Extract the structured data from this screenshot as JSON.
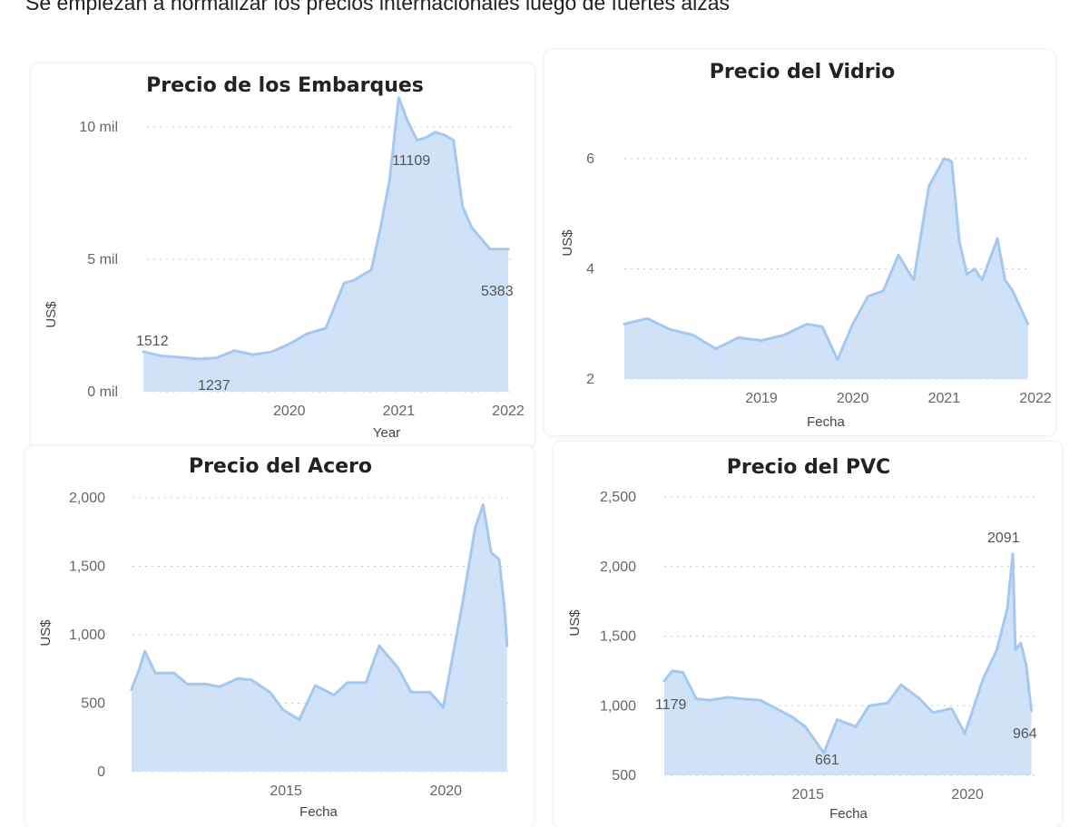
{
  "headline": "Se empiezan a normalizar los precios internacionales luego de fuertes alzas",
  "colors": {
    "line": "#a4c8ef",
    "area": "#cfe2f8",
    "card": "#ffffff"
  },
  "chart_data": [
    {
      "type": "area",
      "title": "Precio de los Embarques",
      "xlabel": "Year",
      "ylabel": "US$",
      "grid": true,
      "x_ticks": [
        "2020",
        "2021",
        "2022"
      ],
      "y_ticks": [
        "0 mil",
        "5 mil",
        "10 mil"
      ],
      "ylim": [
        0,
        10000
      ],
      "data_labels": [
        "1512",
        "1237",
        "11109",
        "5383"
      ],
      "series": [
        {
          "x": [
            "2019-03",
            "2019-05",
            "2019-07",
            "2019-09",
            "2019-11",
            "2020-01",
            "2020-03",
            "2020-05",
            "2020-07",
            "2020-09",
            "2020-11",
            "2021-01",
            "2021-02",
            "2021-04",
            "2021-05",
            "2021-06",
            "2021-07",
            "2021-08",
            "2021-09",
            "2021-10",
            "2021-11",
            "2021-12",
            "2022-01",
            "2022-02",
            "2022-03",
            "2022-04",
            "2022-05",
            "2022-06",
            "2022-07"
          ],
          "values": [
            1512,
            1350,
            1300,
            1237,
            1280,
            1550,
            1400,
            1500,
            1800,
            2200,
            2400,
            4100,
            4200,
            4600,
            6200,
            8000,
            11109,
            10200,
            9500,
            9600,
            9800,
            9700,
            9500,
            7000,
            6200,
            5800,
            5383,
            5383,
            5383
          ]
        }
      ]
    },
    {
      "type": "area",
      "title": "Precio del Vidrio",
      "xlabel": "Fecha",
      "ylabel": "US$",
      "grid": true,
      "x_ticks": [
        "2019",
        "2020",
        "2021",
        "2022"
      ],
      "y_ticks": [
        "2",
        "4",
        "6"
      ],
      "ylim": [
        2,
        6
      ],
      "series": [
        {
          "x": [
            "2018-01",
            "2018-04",
            "2018-07",
            "2018-10",
            "2019-01",
            "2019-04",
            "2019-07",
            "2019-10",
            "2020-01",
            "2020-03",
            "2020-05",
            "2020-07",
            "2020-09",
            "2020-11",
            "2021-01",
            "2021-03",
            "2021-05",
            "2021-07",
            "2021-08",
            "2021-09",
            "2021-10",
            "2021-11",
            "2021-12",
            "2022-02",
            "2022-03",
            "2022-04",
            "2022-05",
            "2022-06"
          ],
          "values": [
            3.0,
            3.1,
            2.9,
            2.8,
            2.55,
            2.75,
            2.7,
            2.8,
            3.0,
            2.95,
            2.35,
            3.0,
            3.5,
            3.6,
            4.25,
            3.8,
            5.5,
            6.0,
            5.95,
            4.5,
            3.9,
            4.0,
            3.8,
            4.55,
            3.8,
            3.6,
            3.3,
            3.0
          ]
        }
      ]
    },
    {
      "type": "area",
      "title": "Precio del Acero",
      "xlabel": "Fecha",
      "ylabel": "US$",
      "grid": true,
      "x_ticks": [
        "2015",
        "2020"
      ],
      "y_ticks": [
        "0",
        "500",
        "1,000",
        "1,500",
        "2,000"
      ],
      "ylim": [
        0,
        2000
      ],
      "series": [
        {
          "x": [
            "2010-09",
            "2010-12",
            "2011-02",
            "2011-06",
            "2012-01",
            "2012-06",
            "2013-01",
            "2013-06",
            "2014-01",
            "2014-06",
            "2015-01",
            "2015-06",
            "2015-12",
            "2016-06",
            "2017-01",
            "2017-06",
            "2018-01",
            "2018-06",
            "2019-01",
            "2019-06",
            "2020-01",
            "2020-06",
            "2021-01",
            "2021-06",
            "2021-09",
            "2021-12",
            "2022-03",
            "2022-05",
            "2022-06"
          ],
          "values": [
            600,
            750,
            880,
            720,
            720,
            640,
            640,
            620,
            680,
            670,
            580,
            450,
            380,
            630,
            560,
            650,
            650,
            920,
            760,
            580,
            580,
            470,
            1200,
            1780,
            1950,
            1600,
            1550,
            1200,
            920
          ]
        }
      ]
    },
    {
      "type": "area",
      "title": "Precio del PVC",
      "xlabel": "Fecha",
      "ylabel": "US$",
      "grid": true,
      "x_ticks": [
        "2015",
        "2020"
      ],
      "y_ticks": [
        "500",
        "1,000",
        "1,500",
        "2,000",
        "2,500"
      ],
      "ylim": [
        500,
        2500
      ],
      "data_labels": [
        "1179",
        "661",
        "2091",
        "964"
      ],
      "series": [
        {
          "x": [
            "2011-01",
            "2011-04",
            "2011-08",
            "2012-01",
            "2012-06",
            "2013-01",
            "2013-06",
            "2014-01",
            "2014-06",
            "2015-01",
            "2015-06",
            "2016-01",
            "2016-06",
            "2017-01",
            "2017-06",
            "2018-01",
            "2018-06",
            "2019-01",
            "2019-06",
            "2020-01",
            "2020-06",
            "2021-01",
            "2021-06",
            "2021-10",
            "2021-12",
            "2022-01",
            "2022-03",
            "2022-05",
            "2022-07"
          ],
          "values": [
            1179,
            1250,
            1240,
            1050,
            1040,
            1060,
            1050,
            1040,
            990,
            920,
            850,
            661,
            900,
            850,
            1000,
            1020,
            1150,
            1050,
            950,
            980,
            800,
            1200,
            1400,
            1700,
            2091,
            1400,
            1450,
            1300,
            964
          ]
        }
      ]
    }
  ]
}
